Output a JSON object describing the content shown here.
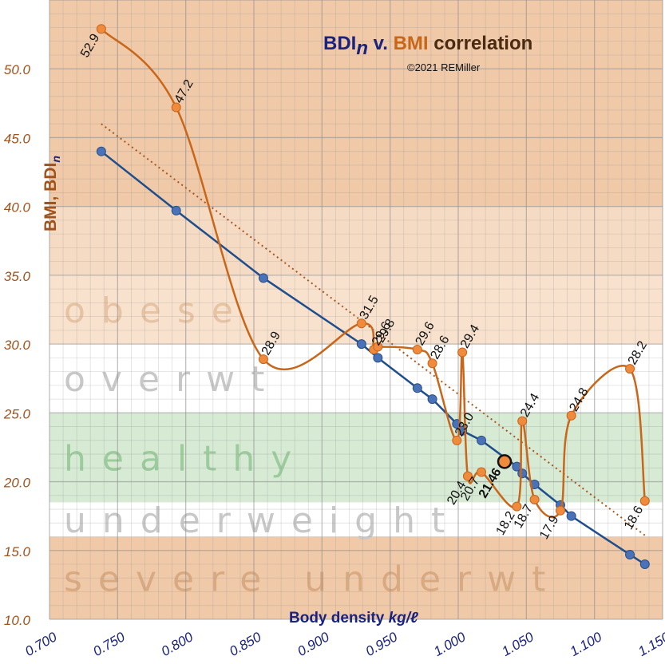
{
  "chart_data": {
    "type": "line",
    "title": {
      "part1": "BDI",
      "part1_sub": "n",
      "part2": " v. ",
      "part3": "BMI",
      "part4": " correlation"
    },
    "subtitle": "©2021 REMiller",
    "xlabel": {
      "main": "Body density ",
      "unit": "kg/ℓ"
    },
    "ylabel": {
      "main": "BMI, BDI",
      "sub": "n"
    },
    "xlim": [
      0.7,
      1.15
    ],
    "ylim": [
      10.0,
      55.0
    ],
    "x_ticks": [
      "0.700",
      "0.750",
      "0.800",
      "0.850",
      "0.900",
      "0.950",
      "1.000",
      "1.050",
      "1.100",
      "1.150"
    ],
    "y_ticks": [
      "10.0",
      "15.0",
      "20.0",
      "25.0",
      "30.0",
      "35.0",
      "40.0",
      "45.0",
      "50.0"
    ],
    "grid": true,
    "zones": [
      {
        "label": "severe underwt",
        "y0": 10.0,
        "y1": 16.0,
        "color": "#f0c9a8",
        "text_color": "#d9aa82"
      },
      {
        "label": "underweight",
        "y0": 16.0,
        "y1": 18.5,
        "color": "#ffffff",
        "text_color": "#c8c8c8"
      },
      {
        "label": "healthy",
        "y0": 18.5,
        "y1": 25.0,
        "color": "#d6ead4",
        "text_color": "#9ccc9c"
      },
      {
        "label": "overwt",
        "y0": 25.0,
        "y1": 30.0,
        "color": "#ffffff",
        "text_color": "#c8c8c8"
      },
      {
        "label": "obese",
        "y0": 30.0,
        "y1": 35.0,
        "color": "#f8e1cd",
        "text_color": "#e6c3a3"
      },
      {
        "label": "",
        "y0": 35.0,
        "y1": 40.0,
        "color": "#f6dbc4",
        "text_color": ""
      },
      {
        "label": "",
        "y0": 40.0,
        "y1": 55.0,
        "color": "#f0c9a8",
        "text_color": ""
      }
    ],
    "series": [
      {
        "name": "BMI",
        "color": "#c8661a",
        "smooth": true,
        "points": [
          {
            "x": 0.738,
            "y": 52.9,
            "label": "52.9"
          },
          {
            "x": 0.793,
            "y": 47.2,
            "label": "47.2"
          },
          {
            "x": 0.857,
            "y": 28.9,
            "label": "28.9"
          },
          {
            "x": 0.929,
            "y": 31.5,
            "label": "31.5"
          },
          {
            "x": 0.938,
            "y": 29.6,
            "label": "29.6"
          },
          {
            "x": 0.941,
            "y": 29.8,
            "label": "29.8"
          },
          {
            "x": 0.97,
            "y": 29.6,
            "label": "29.6"
          },
          {
            "x": 0.981,
            "y": 28.6,
            "label": "28.6"
          },
          {
            "x": 0.999,
            "y": 23.0,
            "label": "23.0"
          },
          {
            "x": 1.003,
            "y": 29.4,
            "label": "29.4"
          },
          {
            "x": 1.007,
            "y": 20.4,
            "label": "20.4"
          },
          {
            "x": 1.017,
            "y": 20.7,
            "label": "20.7"
          },
          {
            "x": 1.043,
            "y": 18.2,
            "label": "18.2"
          },
          {
            "x": 1.047,
            "y": 24.4,
            "label": "24.4"
          },
          {
            "x": 1.056,
            "y": 18.7,
            "label": "18.7"
          },
          {
            "x": 1.075,
            "y": 17.9,
            "label": "17.9"
          },
          {
            "x": 1.083,
            "y": 24.8,
            "label": "24.8"
          },
          {
            "x": 1.126,
            "y": 28.2,
            "label": "28.2"
          },
          {
            "x": 1.137,
            "y": 18.6,
            "label": "18.6"
          }
        ]
      },
      {
        "name": "BDIn",
        "color": "#1f4e8c",
        "smooth": false,
        "points": [
          {
            "x": 0.738,
            "y": 44.0
          },
          {
            "x": 0.793,
            "y": 39.7
          },
          {
            "x": 0.857,
            "y": 34.8
          },
          {
            "x": 0.929,
            "y": 30.0
          },
          {
            "x": 0.941,
            "y": 29.0
          },
          {
            "x": 0.97,
            "y": 26.8
          },
          {
            "x": 0.981,
            "y": 26.0
          },
          {
            "x": 0.999,
            "y": 24.2
          },
          {
            "x": 1.003,
            "y": 23.7
          },
          {
            "x": 1.017,
            "y": 23.0
          },
          {
            "x": 1.043,
            "y": 21.1
          },
          {
            "x": 1.047,
            "y": 20.6
          },
          {
            "x": 1.056,
            "y": 19.8
          },
          {
            "x": 1.075,
            "y": 18.3
          },
          {
            "x": 1.083,
            "y": 17.5
          },
          {
            "x": 1.126,
            "y": 14.7
          },
          {
            "x": 1.137,
            "y": 14.0
          }
        ]
      }
    ],
    "highlight": {
      "x": 1.034,
      "y": 21.46,
      "label": "21.46"
    },
    "trendline": {
      "color": "#a8551a",
      "x0": 0.738,
      "y0": 46.0,
      "x1": 1.137,
      "y1": 16.1
    }
  }
}
